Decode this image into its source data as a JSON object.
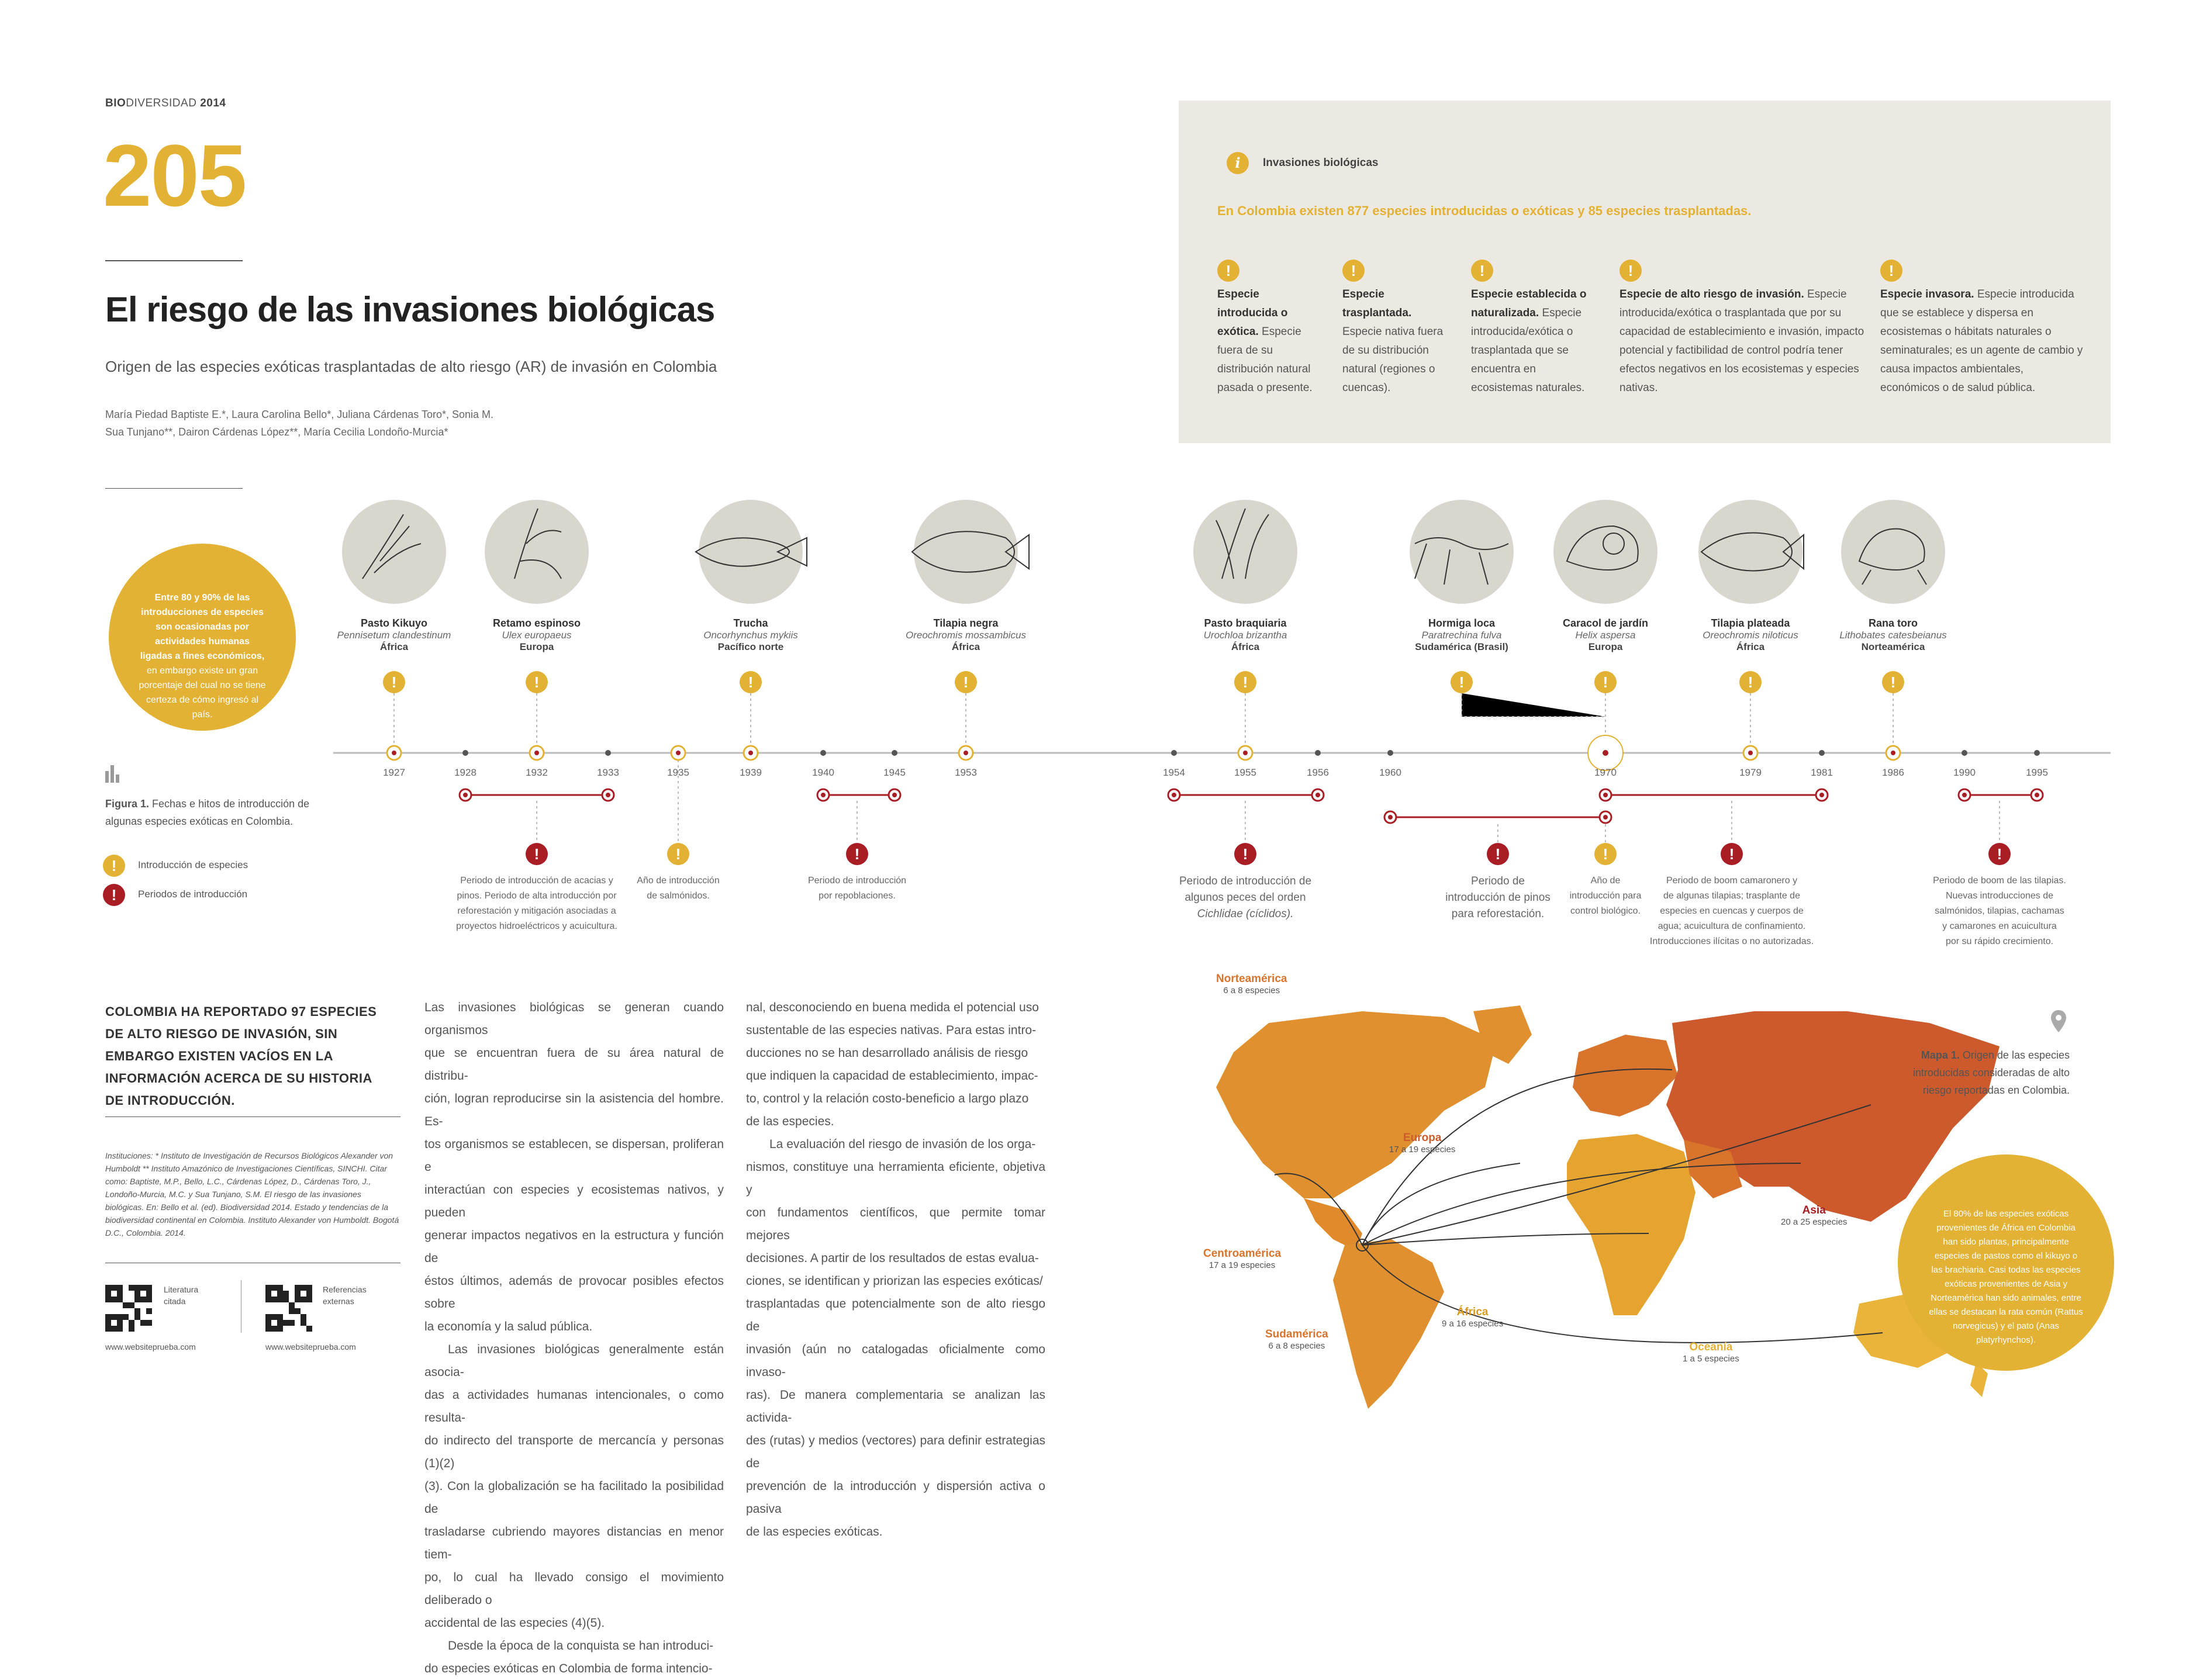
{
  "header": {
    "kicker_bold": "BIO",
    "kicker_rest": "DIVERSIDAD",
    "kicker_year": "2014",
    "page_number": "205",
    "title": "El riesgo de las invasiones biológicas",
    "subtitle": "Origen de las especies exóticas trasplantadas de alto riesgo (AR) de invasión en Colombia",
    "authors_line1": "María Piedad Baptiste E.*, Laura Carolina Bello*, Juliana Cárdenas Toro*, Sonia M.",
    "authors_line2": "Sua Tunjano**, Dairon Cárdenas López**, María Cecilia Londoño-Murcia*"
  },
  "infobox": {
    "heading": "Invasiones biológicas",
    "headline": "En Colombia existen 877 especies introducidas o exóticas y 85 especies trasplantadas.",
    "definitions": [
      {
        "term": "Especie introducida o exótica.",
        "text": "Especie fuera de su distribución natural pasada o presente."
      },
      {
        "term": "Especie trasplantada.",
        "text": "Especie nativa fuera de su distribución natural (regiones o cuencas)."
      },
      {
        "term": "Especie establecida o naturalizada.",
        "text": "Especie introducida/exótica o trasplantada que se encuentra en ecosistemas naturales."
      },
      {
        "term": "Especie de alto riesgo de invasión.",
        "text": "Especie introducida/exótica o trasplantada que por su capacidad de establecimiento e invasión, impacto potencial y factibilidad de control podría tener efectos negativos en los ecosistemas y especies nativas."
      },
      {
        "term": "Especie invasora.",
        "text": "Especie introducida que se establece y dispersa en ecosistemas o hábitats naturales o seminaturales; es un agente de cambio y causa impactos ambientales, económicos o de salud pública."
      }
    ]
  },
  "intro_circle": {
    "bold": "Entre 80 y 90% de las introducciones de especies son ocasionadas por actividades humanas ligadas a fines económicos,",
    "rest": "en embargo existe un gran porcentaje del cual no se tiene certeza de cómo ingresó al país."
  },
  "figure": {
    "label": "Figura 1.",
    "caption": "Fechas e hitos de introducción de algunas especies exóticas en Colombia.",
    "legend_species": "Introducción de especies",
    "legend_periods": "Periodos de introducción"
  },
  "species": [
    {
      "name": "Pasto Kikuyo",
      "sci": "Pennisetum clandestinum",
      "region": "África"
    },
    {
      "name": "Retamo espinoso",
      "sci": "Ulex europaeus",
      "region": "Europa"
    },
    {
      "name": "Trucha",
      "sci": "Oncorhynchus mykiis",
      "region": "Pacífico norte"
    },
    {
      "name": "Tilapia negra",
      "sci": "Oreochromis mossambicus",
      "region": "África"
    },
    {
      "name": "Pasto braquiaria",
      "sci": "Urochloa brizantha",
      "region": "África"
    },
    {
      "name": "Hormiga loca",
      "sci": "Paratrechina fulva",
      "region": "Sudamérica (Brasil)"
    },
    {
      "name": "Caracol de jardín",
      "sci": "Helix aspersa",
      "region": "Europa"
    },
    {
      "name": "Tilapia plateada",
      "sci": "Oreochromis niloticus",
      "region": "África"
    },
    {
      "name": "Rana toro",
      "sci": "Lithobates catesbeianus",
      "region": "Norteamérica"
    }
  ],
  "years": [
    "1927",
    "1928",
    "1932",
    "1933",
    "1935",
    "1939",
    "1940",
    "1945",
    "1953",
    "1954",
    "1955",
    "1956",
    "1960",
    "1970",
    "1979",
    "1981",
    "1986",
    "1990",
    "1995"
  ],
  "timeline_notes": {
    "n1": [
      "Periodo de introducción de acacias y",
      "pinos. Periodo de alta introducción por",
      "reforestación y mitigación asociadas a",
      "proyectos hidroeléctricos y acuicultura."
    ],
    "n2": [
      "Año de introducción",
      "de salmónidos."
    ],
    "n3": [
      "Periodo de introducción",
      "por repoblaciones."
    ],
    "n4": [
      "Periodo de introducción de",
      "algunos peces del orden",
      "Cichlidae (cíclidos)."
    ],
    "n5": [
      "Periodo de",
      "introducción de pinos",
      "para reforestación."
    ],
    "n6": [
      "Año de",
      "introducción para",
      "control biológico."
    ],
    "n7": [
      "Periodo de boom camaronero y",
      "de algunas tilapias; trasplante de",
      "especies en cuencas y cuerpos de",
      "agua; acuicultura de confinamiento.",
      "Introducciones ilícitas o no autorizadas."
    ],
    "n8": [
      "Periodo de boom de las tilapias.",
      "Nuevas introducciones de",
      "salmónidos, tilapias, cachamas",
      "y camarones en acuicultura",
      "por su rápido crecimiento."
    ]
  },
  "callout": "COLOMBIA HA REPORTADO 97 ESPECIES DE ALTO RIESGO DE INVASIÓN, SIN EMBARGO EXISTEN VACÍOS EN LA INFORMACIÓN ACERCA DE SU HISTORIA DE INTRODUCCIÓN.",
  "institutions": "Instituciones: * Instituto de Investigación de Recursos Biológicos Alexander von Humboldt ** Instituto Amazónico de Investigaciones Científicas, SINCHI. Citar como: Baptiste, M.P., Bello, L.C., Cárdenas López, D., Cárdenas Toro, J., Londoño-Murcia, M.C. y Sua Tunjano, S.M. El riesgo de las invasiones biológicas. En: Bello et al. (ed). Biodiversidad 2014. Estado y tendencias de la biodiversidad continental en Colombia. Instituto Alexander von Humboldt. Bogotá D.C., Colombia. 2014.",
  "qr": [
    {
      "label1": "Literatura",
      "label2": "citada",
      "url": "www.websiteprueba.com"
    },
    {
      "label1": "Referencias",
      "label2": "externas",
      "url": "www.websiteprueba.com"
    }
  ],
  "body_col1": [
    "Las invasiones biológicas se generan cuando organismos",
    "que se encuentran fuera de su área natural de distribu-",
    "ción, logran reproducirse sin la asistencia del hombre. Es-",
    "tos organismos se establecen, se dispersan, proliferan e",
    "interactúan con especies y ecosistemas nativos, y pueden",
    "generar impactos negativos en la estructura y función de",
    "éstos últimos, además de provocar posibles efectos sobre",
    "la economía y la salud pública.",
    "Las invasiones biológicas generalmente están asocia-",
    "das a actividades humanas intencionales, o como resulta-",
    "do indirecto del transporte de mercancía y personas (1)(2)",
    "(3). Con la globalización se ha facilitado la posibilidad de",
    "trasladarse cubriendo mayores distancias en menor tiem-",
    "po, lo cual ha llevado consigo el movimiento deliberado o",
    "accidental de las especies (4)(5).",
    "Desde la época de la conquista se han introduci-",
    "do especies exóticas en Colombia de forma intencio-"
  ],
  "body_col2": [
    "nal, desconociendo en buena medida el potencial uso",
    "sustentable de las especies nativas. Para estas intro-",
    "ducciones no se han desarrollado análisis de riesgo",
    "que indiquen la capacidad de establecimiento, impac-",
    "to, control y la relación costo-beneficio a largo plazo",
    "de las especies.",
    "La evaluación del riesgo de invasión de los orga-",
    "nismos, constituye una herramienta eficiente, objetiva y",
    "con fundamentos científicos, que permite tomar mejores",
    "decisiones. A partir de los resultados de estas evalua-",
    "ciones, se identifican y priorizan las especies exóticas/",
    "trasplantadas que potencialmente son de alto riesgo de",
    "invasión (aún no catalogadas oficialmente como invaso-",
    "ras). De manera complementaria se analizan las activida-",
    "des (rutas) y medios (vectores) para definir estrategias de",
    "prevención de la introducción y dispersión activa o pasiva",
    "de las especies exóticas."
  ],
  "map": {
    "label": "Mapa 1.",
    "caption": "Origen de las especies introducidas consideradas de alto riesgo reportadas en Colombia.",
    "regions": [
      {
        "name": "Norteamérica",
        "count": "6 a 8 especies"
      },
      {
        "name": "Europa",
        "count": "17 a 19 especies"
      },
      {
        "name": "Asia",
        "count": "20 a 25 especies"
      },
      {
        "name": "Centroamérica",
        "count": "17 a 19 especies"
      },
      {
        "name": "África",
        "count": "9 a 16 especies"
      },
      {
        "name": "Sudamérica",
        "count": "6 a 8 especies"
      },
      {
        "name": "Oceanía",
        "count": "1 a 5 especies"
      }
    ],
    "circle_text": "El 80% de las especies exóticas provenientes de África en Colombia han sido plantas, principalmente especies de pastos como el kikuyo o las brachiaria. Casi todas las especies exóticas provenientes de Asia y Norteamérica han sido animales, entre ellas se destacan la rata común (Rattus norvegicus) y el pato (Anas platyrhynchos)."
  },
  "colors": {
    "gold": "#e3b234",
    "red": "#a81e24",
    "box": "#ebe9e1",
    "asia": "#cc5a2c",
    "europe": "#d9742c"
  }
}
